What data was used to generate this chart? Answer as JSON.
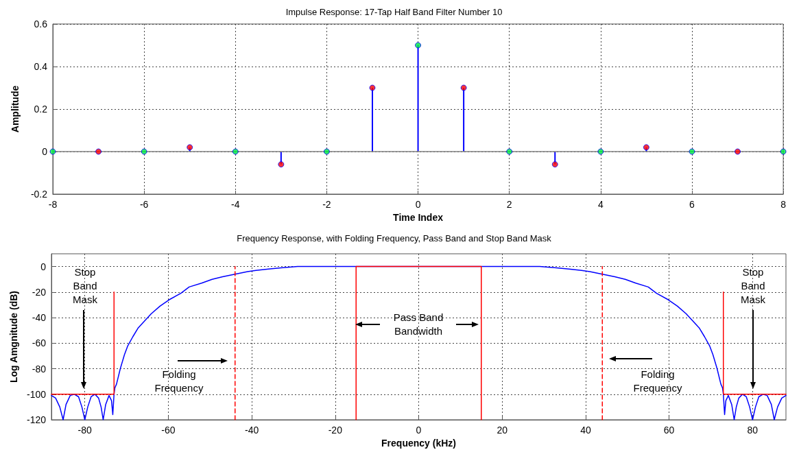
{
  "chart_data": [
    {
      "type": "lollipop",
      "title": "Impulse Response: 17-Tap Half Band Filter Number 10",
      "xlabel": "Time Index",
      "ylabel": "Amplitude",
      "x": [
        -8,
        -7,
        -6,
        -5,
        -4,
        -3,
        -2,
        -1,
        0,
        1,
        2,
        3,
        4,
        5,
        6,
        7,
        8
      ],
      "series": [
        {
          "color": "#0000ff",
          "values": [
            0,
            0,
            0,
            0.02,
            0,
            -0.06,
            0,
            0.3,
            0.5,
            0.3,
            0,
            -0.06,
            0,
            0.02,
            0,
            0,
            0
          ],
          "colors": [
            "#00ee44",
            "#ff0000",
            "#00ee44",
            "#ff0000",
            "#00ee44",
            "#ff0000",
            "#00ee44",
            "#ff0000",
            "#00ee44",
            "#ff0000",
            "#00ee44",
            "#ff0000",
            "#00ee44",
            "#ff0000",
            "#00ee44",
            "#ff0000",
            "#00ee44"
          ]
        }
      ],
      "ref_lines": [
        {
          "axis": "y",
          "value": 0,
          "color": "#808080"
        }
      ],
      "xlim": [
        -8,
        8
      ],
      "xticks": [
        -8,
        -6,
        -4,
        -2,
        0,
        2,
        4,
        6,
        8
      ],
      "ylim": [
        -0.2,
        0.6
      ],
      "yticks": [
        -0.2,
        0,
        0.2,
        0.4,
        0.6
      ],
      "grid": true,
      "marker": "circle"
    },
    {
      "type": "line",
      "title": "Frequency Response, with Folding Frequency, Pass Band and Stop Band Mask",
      "xlabel": "Frequency (kHz)",
      "ylabel": "Log Amgnitude (dB)",
      "series": [
        {
          "color": "#0000ff",
          "x": [
            -88,
            -87,
            -86,
            -85.2,
            -84.5,
            -83.5,
            -82.5,
            -81.5,
            -80.7,
            -80,
            -79.3,
            -78.5,
            -77.6,
            -76.7,
            -76.1,
            -75.6,
            -75,
            -74.2,
            -73.6,
            -73.3,
            -73,
            -72.8,
            -72.4,
            -71.5,
            -70.5,
            -69.7,
            -68.5,
            -67.2,
            -65.5,
            -64.1,
            -62,
            -59.8,
            -57,
            -55,
            -52,
            -49.5,
            -47,
            -44,
            -41,
            -39,
            -36,
            -33,
            -29,
            -27,
            -20,
            -10,
            0,
            10,
            20,
            27,
            29,
            33,
            36,
            39,
            41,
            44,
            47,
            49.5,
            52,
            55,
            57,
            59.8,
            62,
            64.1,
            65.5,
            67.2,
            68.5,
            69.7,
            70.5,
            71.5,
            72.4,
            72.8,
            73,
            73.3,
            73.6,
            74.2,
            75,
            75.6,
            76.1,
            76.7,
            77.6,
            78.5,
            79.3,
            80,
            80.7,
            81.5,
            82.5,
            83.5,
            84.5,
            85.2,
            86,
            87,
            88
          ],
          "values": [
            -101,
            -103,
            -110,
            -120,
            -108,
            -101,
            -100,
            -102,
            -110,
            -120,
            -110,
            -102,
            -100,
            -103,
            -110,
            -120,
            -108,
            -101,
            -105,
            -116,
            -100,
            -95,
            -92,
            -80,
            -69,
            -62,
            -55,
            -48,
            -42,
            -37,
            -31,
            -26,
            -21,
            -16,
            -13,
            -10,
            -8,
            -6,
            -4,
            -3,
            -2,
            -1,
            0,
            0,
            0,
            0,
            0,
            0,
            0,
            0,
            0,
            -1,
            -2,
            -3,
            -4,
            -6,
            -8,
            -10,
            -13,
            -16,
            -21,
            -26,
            -31,
            -37,
            -42,
            -48,
            -55,
            -62,
            -69,
            -80,
            -92,
            -95,
            -100,
            -116,
            -105,
            -101,
            -108,
            -120,
            -110,
            -103,
            -100,
            -102,
            -110,
            -120,
            -110,
            -102,
            -100,
            -101,
            -108,
            -120,
            -110,
            -103,
            -101
          ]
        },
        {
          "color": "#ff0000",
          "x": [
            -88,
            -73,
            -73
          ],
          "values": [
            -100,
            -100,
            -20
          ]
        },
        {
          "color": "#ff0000",
          "x": [
            -15,
            -15,
            15,
            15
          ],
          "values": [
            -120,
            0,
            0,
            -120
          ]
        },
        {
          "color": "#ff0000",
          "x": [
            73,
            73,
            88
          ],
          "values": [
            -20,
            -100,
            -100
          ]
        },
        {
          "color": "#ff0000",
          "x": [
            -44,
            -44
          ],
          "values": [
            -120,
            0
          ],
          "line_style": "dashed"
        },
        {
          "color": "#ff0000",
          "x": [
            44,
            44
          ],
          "values": [
            -120,
            0
          ],
          "line_style": "dashed"
        }
      ],
      "annotations": [
        "Stop Band Mask",
        "Folding Frequency",
        "Pass Band Bandwidth",
        "Folding Frequency",
        "Stop Band Mask"
      ],
      "xlim": [
        -88,
        88
      ],
      "xticks": [
        -80,
        -60,
        -40,
        -20,
        0,
        20,
        40,
        60,
        80
      ],
      "ylim": [
        -120,
        10
      ],
      "yticks": [
        -120,
        -100,
        -80,
        -60,
        -40,
        -20,
        0
      ],
      "grid": true,
      "marker": "none",
      "line_style": "solid"
    }
  ]
}
